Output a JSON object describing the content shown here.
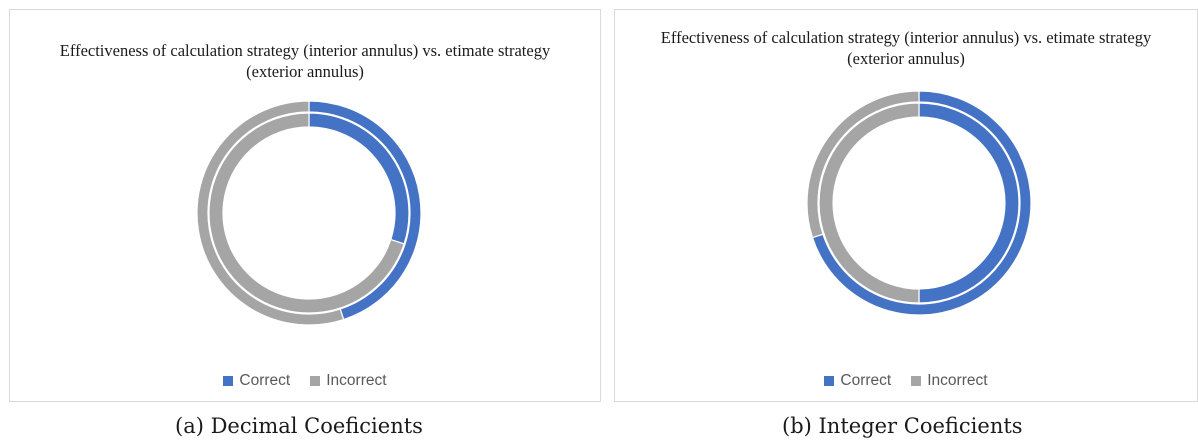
{
  "chart_data": [
    {
      "type": "pie",
      "title": "Effectiveness of calculation strategy (interior annulus) vs. etimate strategy (exterior annulus)",
      "categories": [
        "Correct",
        "Incorrect"
      ],
      "colors": [
        "#4472c4",
        "#a5a5a5"
      ],
      "series": [
        {
          "ring": "interior",
          "values": [
            30,
            70
          ]
        },
        {
          "ring": "exterior",
          "values": [
            45,
            55
          ]
        }
      ],
      "legend_position": "bottom"
    },
    {
      "type": "pie",
      "title": "Effectiveness of calculation strategy (interior annulus) vs. etimate strategy (exterior annulus)",
      "categories": [
        "Correct",
        "Incorrect"
      ],
      "colors": [
        "#4472c4",
        "#a5a5a5"
      ],
      "series": [
        {
          "ring": "interior",
          "values": [
            50,
            50
          ]
        },
        {
          "ring": "exterior",
          "values": [
            70,
            30
          ]
        }
      ],
      "legend_position": "bottom"
    }
  ],
  "captions": [
    "(a) Decimal Coeficients",
    "(b) Integer Coeficients"
  ]
}
